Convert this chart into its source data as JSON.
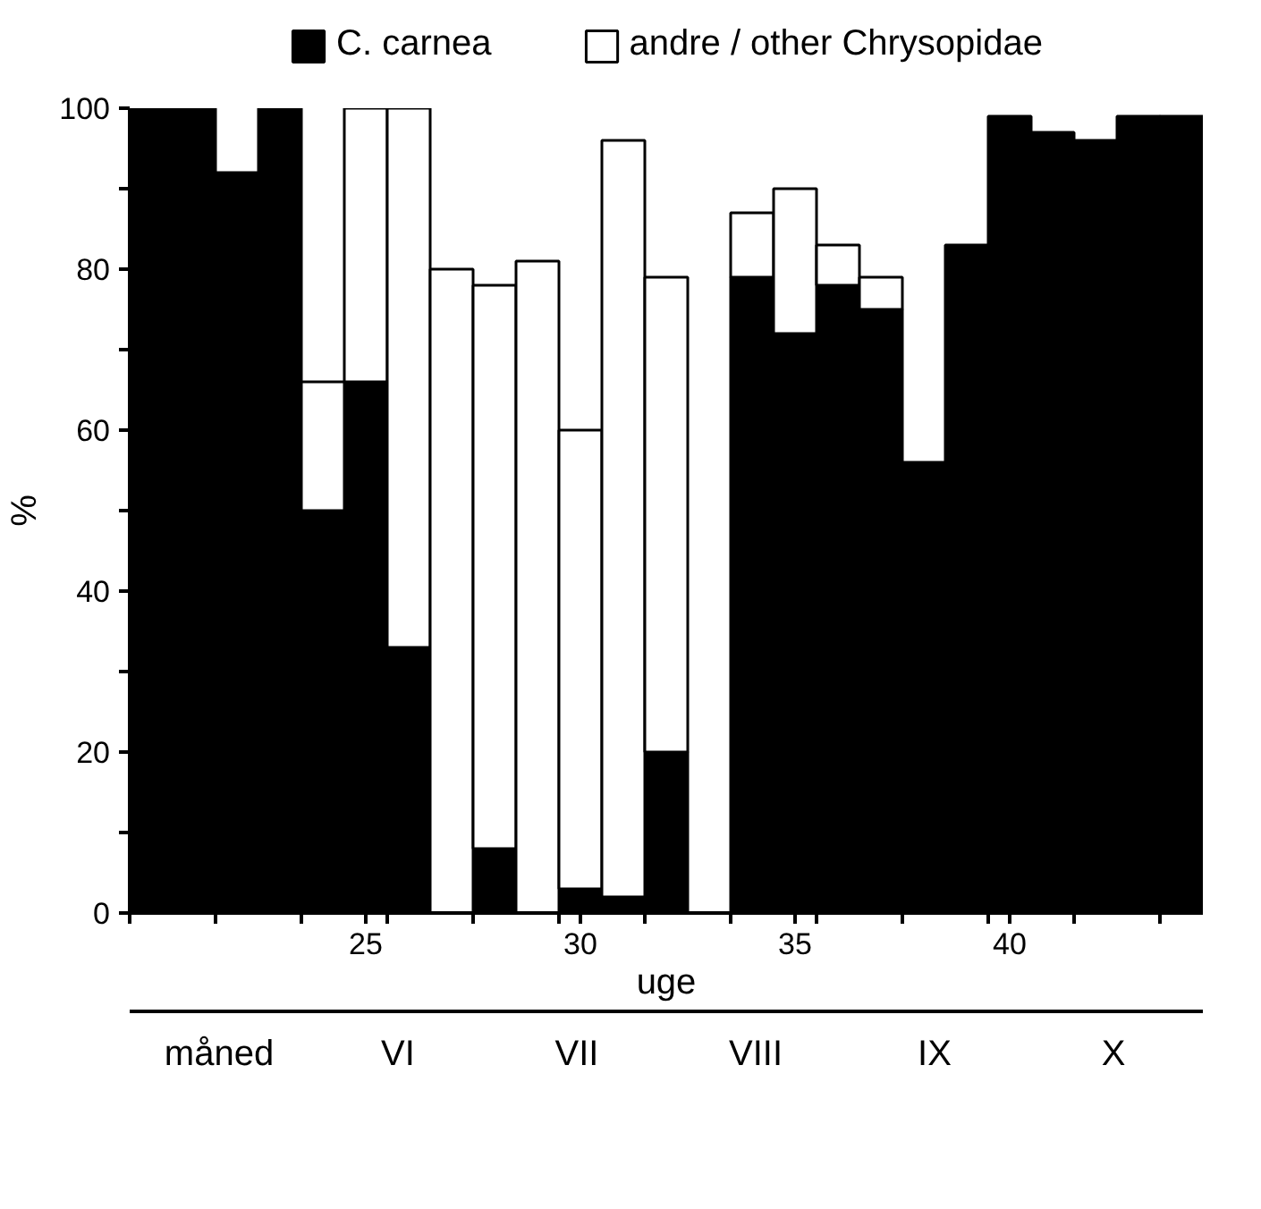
{
  "chart_data": {
    "type": "bar",
    "stacked": true,
    "xlabel": "uge",
    "ylabel": "%",
    "legend": "top",
    "x": [
      20,
      21,
      22,
      23,
      24,
      25,
      26,
      27,
      28,
      29,
      30,
      31,
      32,
      33,
      34,
      35,
      36,
      37,
      38,
      39,
      40,
      41,
      42,
      43,
      44
    ],
    "series": [
      {
        "name": "C. carnea",
        "color": "#000000",
        "values": [
          100,
          100,
          92,
          100,
          50,
          66,
          33,
          null,
          8,
          null,
          3,
          2,
          20,
          null,
          79,
          72,
          78,
          75,
          56,
          83,
          99,
          97,
          96,
          99,
          99
        ]
      },
      {
        "name": "andre / other Chrysopidae",
        "color": "#ffffff",
        "values": [
          null,
          null,
          null,
          null,
          16,
          34,
          67,
          80,
          70,
          81,
          57,
          94,
          59,
          null,
          8,
          18,
          5,
          4,
          null,
          null,
          null,
          null,
          null,
          null,
          null
        ]
      }
    ],
    "xlim": [
      19.5,
      44.5
    ],
    "xticks": [
      {
        "value": 19.5,
        "label": null
      },
      {
        "value": 21.5,
        "label": null
      },
      {
        "value": 23.5,
        "label": null
      },
      25,
      {
        "value": 25.5,
        "label": null
      },
      {
        "value": 27.5,
        "label": null
      },
      {
        "value": 29.5,
        "label": null
      },
      30,
      {
        "value": 31.5,
        "label": null
      },
      {
        "value": 33.5,
        "label": null
      },
      35,
      {
        "value": 35.5,
        "label": null
      },
      {
        "value": 37.5,
        "label": null
      },
      {
        "value": 39.5,
        "label": null
      },
      40,
      {
        "value": 41.5,
        "label": null
      },
      {
        "value": 43.5,
        "label": null
      }
    ],
    "ylim": [
      0,
      100
    ],
    "yticks": [
      0,
      {
        "value": 10,
        "label": null
      },
      20,
      {
        "value": 30,
        "label": null
      },
      40,
      {
        "value": 50,
        "label": null
      },
      60,
      {
        "value": 70,
        "label": null
      },
      80,
      {
        "value": 90,
        "label": null
      },
      100
    ],
    "annotations": [
      "måned",
      "VI",
      "VII",
      "VIII",
      "IX",
      "X"
    ]
  }
}
